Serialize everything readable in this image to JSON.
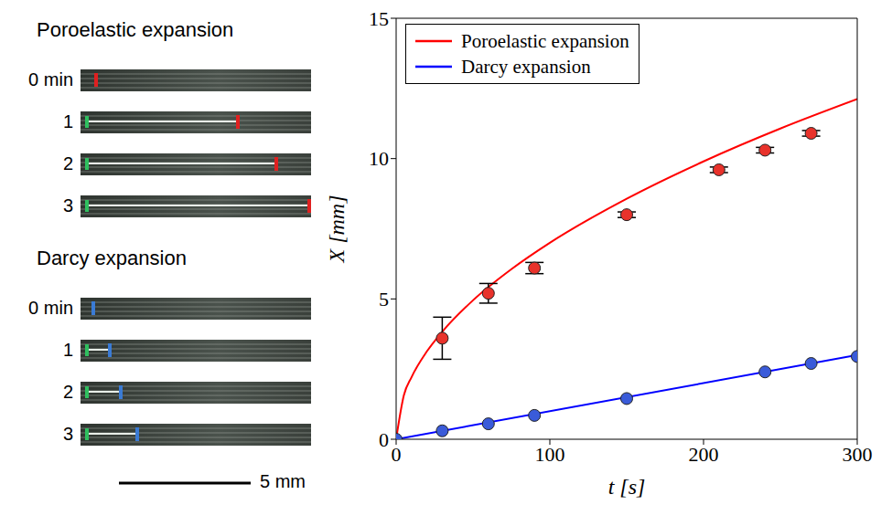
{
  "image_panel": {
    "groups": [
      {
        "title": "Poroelastic expansion",
        "frames": [
          "0 min",
          "1",
          "2",
          "3"
        ]
      },
      {
        "title": "Darcy expansion",
        "frames": [
          "0 min",
          "1",
          "2",
          "3"
        ]
      }
    ],
    "scale_bar": "5 mm"
  },
  "chart_data": {
    "type": "line",
    "xlabel": "t [s]",
    "ylabel": "X [mm]",
    "xlim": [
      0,
      300
    ],
    "ylim": [
      0,
      15
    ],
    "xticks": [
      0,
      100,
      200,
      300
    ],
    "yticks": [
      0,
      5,
      10,
      15
    ],
    "legend": "upper left",
    "grid": false,
    "series": [
      {
        "name": "Poroelastic expansion",
        "type": "line",
        "color": "#ff0000",
        "x": [
          0,
          5,
          10,
          20,
          30,
          50,
          75,
          100,
          150,
          200,
          250,
          300
        ],
        "values": [
          0,
          1.56,
          2.21,
          3.13,
          3.83,
          4.95,
          6.06,
          7.0,
          8.57,
          9.9,
          11.07,
          12.12
        ]
      },
      {
        "name": "Darcy expansion",
        "type": "line",
        "color": "#0000ff",
        "x": [
          0,
          300
        ],
        "values": [
          0,
          3.0
        ]
      },
      {
        "type": "scatter",
        "marker": "circle",
        "color": "#e8322b",
        "x": [
          30,
          60,
          90,
          150,
          210,
          240,
          270
        ],
        "values": [
          3.6,
          5.2,
          6.1,
          8.0,
          9.6,
          10.3,
          10.9
        ],
        "errors": [
          0.75,
          0.35,
          0.2,
          0.1,
          0.1,
          0.1,
          0.1
        ]
      },
      {
        "type": "scatter",
        "marker": "circle",
        "color": "#3a5bd9",
        "x": [
          0,
          30,
          60,
          90,
          150,
          240,
          270,
          300
        ],
        "values": [
          0,
          0.3,
          0.55,
          0.85,
          1.45,
          2.4,
          2.7,
          2.95
        ]
      }
    ]
  }
}
